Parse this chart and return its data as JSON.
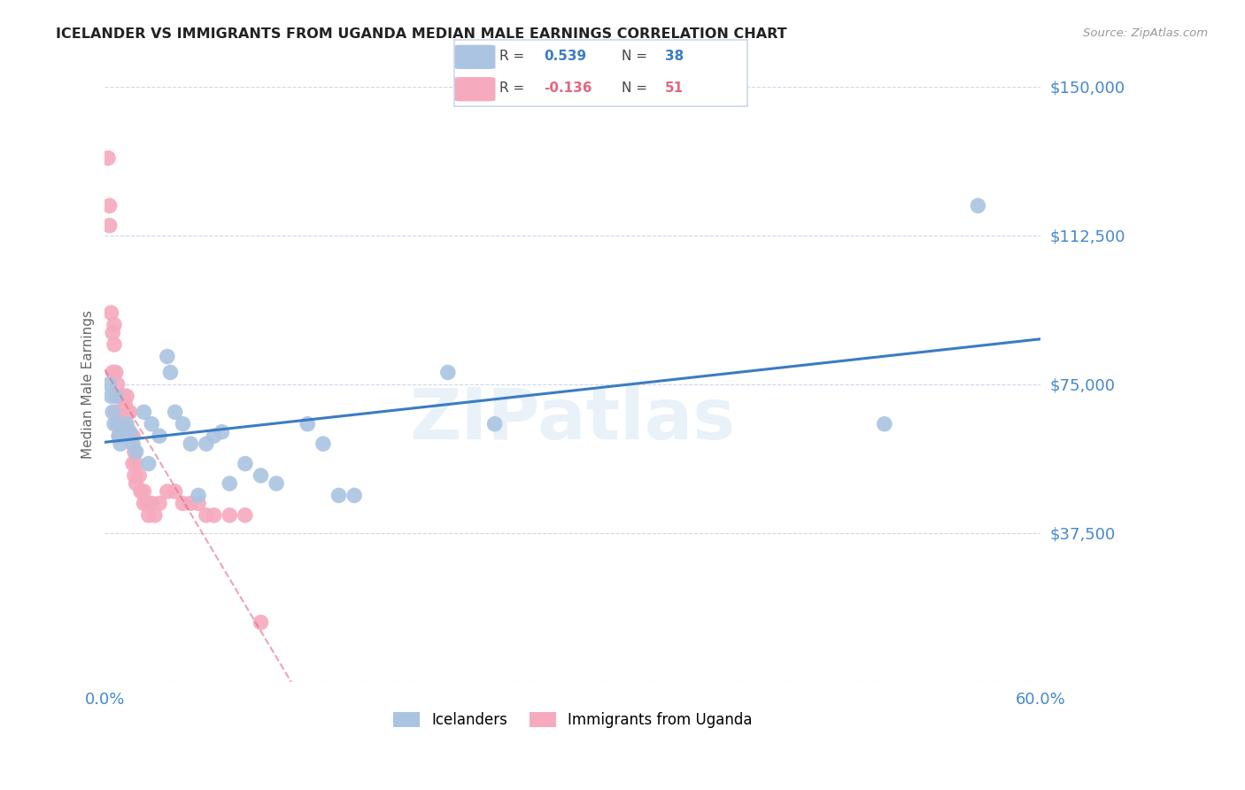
{
  "title": "ICELANDER VS IMMIGRANTS FROM UGANDA MEDIAN MALE EARNINGS CORRELATION CHART",
  "source": "Source: ZipAtlas.com",
  "ylabel": "Median Male Earnings",
  "yticks": [
    0,
    37500,
    75000,
    112500,
    150000
  ],
  "ytick_labels": [
    "",
    "$37,500",
    "$75,000",
    "$112,500",
    "$150,000"
  ],
  "xlim": [
    0.0,
    0.6
  ],
  "ylim": [
    0,
    150000
  ],
  "watermark": "ZIPatlas",
  "icelander_color": "#aac4e2",
  "uganda_color": "#f5aabe",
  "icelander_line_color": "#3a7cc4",
  "uganda_line_color": "#e06880",
  "icelander_scatter": [
    [
      0.003,
      75000
    ],
    [
      0.004,
      72000
    ],
    [
      0.005,
      68000
    ],
    [
      0.006,
      65000
    ],
    [
      0.007,
      72000
    ],
    [
      0.008,
      65000
    ],
    [
      0.009,
      62000
    ],
    [
      0.01,
      60000
    ],
    [
      0.012,
      62000
    ],
    [
      0.014,
      65000
    ],
    [
      0.016,
      63000
    ],
    [
      0.018,
      60000
    ],
    [
      0.02,
      58000
    ],
    [
      0.025,
      68000
    ],
    [
      0.028,
      55000
    ],
    [
      0.03,
      65000
    ],
    [
      0.035,
      62000
    ],
    [
      0.04,
      82000
    ],
    [
      0.042,
      78000
    ],
    [
      0.045,
      68000
    ],
    [
      0.05,
      65000
    ],
    [
      0.055,
      60000
    ],
    [
      0.06,
      47000
    ],
    [
      0.065,
      60000
    ],
    [
      0.07,
      62000
    ],
    [
      0.075,
      63000
    ],
    [
      0.08,
      50000
    ],
    [
      0.09,
      55000
    ],
    [
      0.1,
      52000
    ],
    [
      0.11,
      50000
    ],
    [
      0.13,
      65000
    ],
    [
      0.14,
      60000
    ],
    [
      0.15,
      47000
    ],
    [
      0.16,
      47000
    ],
    [
      0.22,
      78000
    ],
    [
      0.25,
      65000
    ],
    [
      0.5,
      65000
    ],
    [
      0.56,
      120000
    ]
  ],
  "uganda_scatter": [
    [
      0.002,
      132000
    ],
    [
      0.003,
      120000
    ],
    [
      0.003,
      115000
    ],
    [
      0.004,
      93000
    ],
    [
      0.005,
      88000
    ],
    [
      0.005,
      78000
    ],
    [
      0.006,
      90000
    ],
    [
      0.006,
      85000
    ],
    [
      0.007,
      78000
    ],
    [
      0.007,
      68000
    ],
    [
      0.008,
      75000
    ],
    [
      0.008,
      65000
    ],
    [
      0.009,
      68000
    ],
    [
      0.009,
      62000
    ],
    [
      0.01,
      65000
    ],
    [
      0.01,
      72000
    ],
    [
      0.011,
      65000
    ],
    [
      0.012,
      68000
    ],
    [
      0.012,
      72000
    ],
    [
      0.013,
      70000
    ],
    [
      0.013,
      65000
    ],
    [
      0.014,
      72000
    ],
    [
      0.015,
      68000
    ],
    [
      0.015,
      63000
    ],
    [
      0.016,
      68000
    ],
    [
      0.017,
      62000
    ],
    [
      0.018,
      62000
    ],
    [
      0.018,
      55000
    ],
    [
      0.019,
      58000
    ],
    [
      0.019,
      52000
    ],
    [
      0.02,
      55000
    ],
    [
      0.02,
      50000
    ],
    [
      0.022,
      52000
    ],
    [
      0.023,
      48000
    ],
    [
      0.025,
      48000
    ],
    [
      0.025,
      45000
    ],
    [
      0.027,
      45000
    ],
    [
      0.028,
      42000
    ],
    [
      0.03,
      45000
    ],
    [
      0.032,
      42000
    ],
    [
      0.035,
      45000
    ],
    [
      0.04,
      48000
    ],
    [
      0.045,
      48000
    ],
    [
      0.05,
      45000
    ],
    [
      0.055,
      45000
    ],
    [
      0.06,
      45000
    ],
    [
      0.065,
      42000
    ],
    [
      0.07,
      42000
    ],
    [
      0.08,
      42000
    ],
    [
      0.09,
      42000
    ],
    [
      0.1,
      15000
    ]
  ],
  "background_color": "#ffffff",
  "grid_color": "#ccd8ec",
  "title_color": "#222222",
  "tick_color": "#4488cc"
}
